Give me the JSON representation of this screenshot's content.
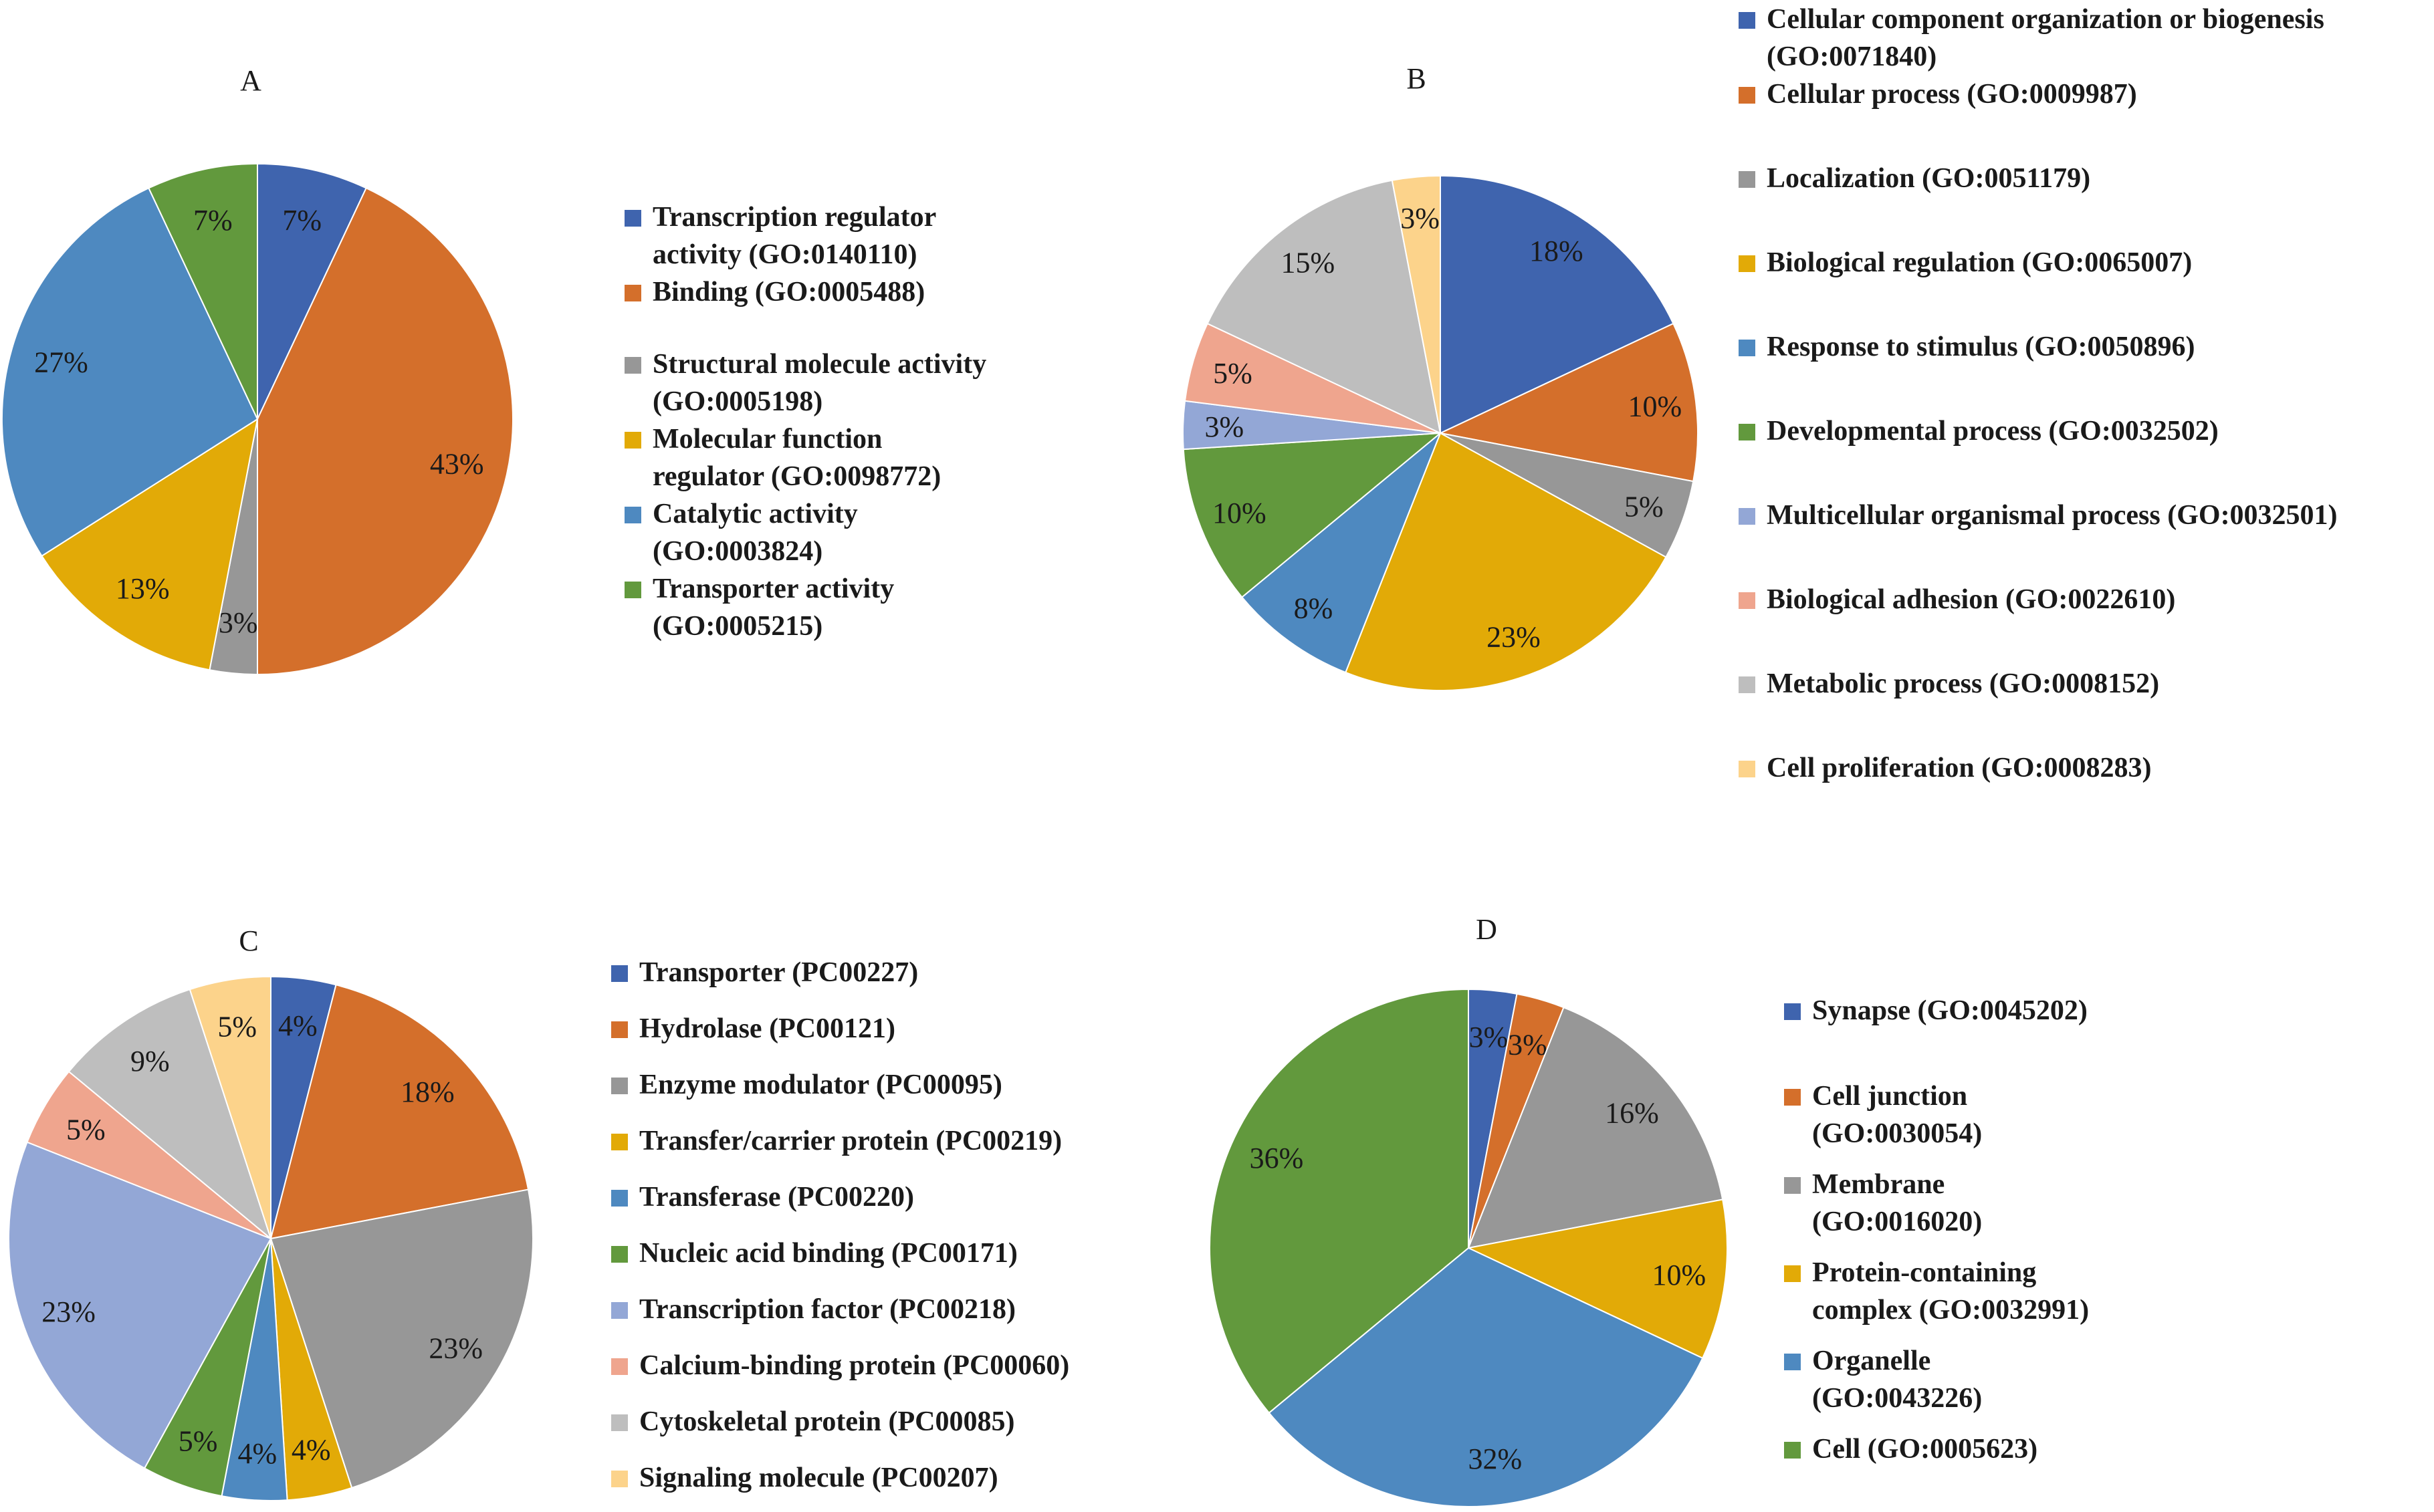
{
  "chart_data": [
    {
      "type": "pie",
      "title": "A",
      "categories": [
        "Transcription regulator activity (GO:0140110)",
        "Binding (GO:0005488)",
        "Structural molecule activity (GO:0005198)",
        "Molecular function regulator (GO:0098772)",
        "Catalytic activity (GO:0003824)",
        "Transporter activity (GO:0005215)"
      ],
      "legend_lines": [
        [
          "Transcription regulator",
          "activity (GO:0140110)"
        ],
        [
          "Binding (GO:0005488)"
        ],
        [
          "Structural molecule activity",
          "(GO:0005198)"
        ],
        [
          "Molecular function",
          "regulator (GO:0098772)"
        ],
        [
          "Catalytic activity",
          "(GO:0003824)"
        ],
        [
          "Transporter activity",
          "(GO:0005215)"
        ]
      ],
      "values": [
        7,
        43,
        3,
        13,
        27,
        7
      ],
      "labels": [
        "7%",
        "43%",
        "3%",
        "13%",
        "27%",
        "7%"
      ],
      "colors": [
        "#3F64AE",
        "#D46F2B",
        "#979797",
        "#E2AA07",
        "#4E89C0",
        "#62993D"
      ],
      "legend_position": "right"
    },
    {
      "type": "pie",
      "title": "B",
      "categories": [
        "Cellular component organization or biogenesis (GO:0071840)",
        "Cellular process (GO:0009987)",
        "Localization (GO:0051179)",
        "Biological regulation (GO:0065007)",
        "Response to stimulus (GO:0050896)",
        "Developmental process (GO:0032502)",
        "Multicellular organismal process (GO:0032501)",
        "Biological adhesion (GO:0022610)",
        "Metabolic process (GO:0008152)",
        "Cell proliferation (GO:0008283)"
      ],
      "legend_lines": [
        [
          "Cellular component organization or biogenesis",
          "(GO:0071840)"
        ],
        [
          "Cellular process (GO:0009987)"
        ],
        [
          "Localization (GO:0051179)"
        ],
        [
          "Biological regulation (GO:0065007)"
        ],
        [
          "Response to stimulus (GO:0050896)"
        ],
        [
          "Developmental process (GO:0032502)"
        ],
        [
          "Multicellular organismal process (GO:0032501)"
        ],
        [
          "Biological adhesion (GO:0022610)"
        ],
        [
          "Metabolic process (GO:0008152)"
        ],
        [
          "Cell proliferation (GO:0008283)"
        ]
      ],
      "values": [
        18,
        10,
        5,
        23,
        8,
        10,
        3,
        5,
        15,
        3
      ],
      "labels": [
        "18%",
        "10%",
        "5%",
        "23%",
        "8%",
        "10%",
        "3%",
        "5%",
        "15%",
        "3%"
      ],
      "colors": [
        "#3F64AE",
        "#D46F2B",
        "#979797",
        "#E2AA07",
        "#4E89C0",
        "#62993D",
        "#93A7D6",
        "#EFA58E",
        "#BEBEBE",
        "#FCD38B"
      ],
      "legend_position": "right"
    },
    {
      "type": "pie",
      "title": "C",
      "categories": [
        "Transporter (PC00227)",
        "Hydrolase (PC00121)",
        "Enzyme modulator (PC00095)",
        "Transfer/carrier protein (PC00219)",
        "Transferase (PC00220)",
        "Nucleic acid binding (PC00171)",
        "Transcription factor (PC00218)",
        "Calcium-binding protein (PC00060)",
        "Cytoskeletal protein (PC00085)",
        "Signaling molecule (PC00207)"
      ],
      "legend_lines": [
        [
          "Transporter (PC00227)"
        ],
        [
          "Hydrolase (PC00121)"
        ],
        [
          "Enzyme modulator (PC00095)"
        ],
        [
          "Transfer/carrier protein (PC00219)"
        ],
        [
          "Transferase (PC00220)"
        ],
        [
          "Nucleic acid binding (PC00171)"
        ],
        [
          "Transcription factor (PC00218)"
        ],
        [
          "Calcium-binding protein (PC00060)"
        ],
        [
          "Cytoskeletal protein (PC00085)"
        ],
        [
          "Signaling molecule (PC00207)"
        ]
      ],
      "values": [
        4,
        18,
        23,
        4,
        4,
        5,
        23,
        5,
        9,
        5
      ],
      "labels": [
        "4%",
        "18%",
        "23%",
        "4%",
        "4%",
        "5%",
        "23%",
        "5%",
        "9%",
        "5%"
      ],
      "colors": [
        "#3F64AE",
        "#D46F2B",
        "#979797",
        "#E2AA07",
        "#4E89C0",
        "#62993D",
        "#93A7D6",
        "#EFA58E",
        "#BEBEBE",
        "#FCD38B"
      ],
      "legend_position": "right"
    },
    {
      "type": "pie",
      "title": "D",
      "categories": [
        "Synapse (GO:0045202)",
        "Cell junction (GO:0030054)",
        "Membrane (GO:0016020)",
        "Protein-containing complex (GO:0032991)",
        "Organelle (GO:0043226)",
        "Cell (GO:0005623)"
      ],
      "legend_lines": [
        [
          "Synapse (GO:0045202)"
        ],
        [
          "Cell junction",
          "(GO:0030054)"
        ],
        [
          "Membrane",
          "(GO:0016020)"
        ],
        [
          "Protein-containing",
          "complex (GO:0032991)"
        ],
        [
          "Organelle",
          "(GO:0043226)"
        ],
        [
          "Cell (GO:0005623)"
        ]
      ],
      "values": [
        3,
        3,
        16,
        10,
        32,
        36
      ],
      "labels": [
        "3%",
        "3%",
        "16%",
        "10%",
        "32%",
        "36%"
      ],
      "colors": [
        "#3F64AE",
        "#D46F2B",
        "#979797",
        "#E2AA07",
        "#4E89C0",
        "#62993D"
      ],
      "legend_position": "right"
    }
  ]
}
